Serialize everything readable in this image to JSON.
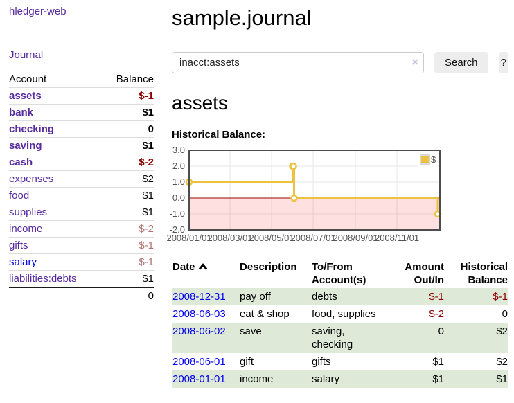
{
  "sidebar": {
    "brand": "hledger-web",
    "journal_link": "Journal",
    "accounts_table": {
      "account_header": "Account",
      "balance_header": "Balance",
      "rows": [
        {
          "account": "assets",
          "depth": 1,
          "bold": true,
          "balance": "$-1",
          "balance_style": "neg-strong"
        },
        {
          "account": "bank",
          "depth": 2,
          "bold": true,
          "balance": "$1",
          "balance_style": "normal"
        },
        {
          "account": "checking",
          "depth": 3,
          "bold": true,
          "balance": "0",
          "balance_style": "normal"
        },
        {
          "account": "saving",
          "depth": 3,
          "bold": true,
          "balance": "$1",
          "balance_style": "normal"
        },
        {
          "account": "cash",
          "depth": 2,
          "bold": true,
          "balance": "$-2",
          "balance_style": "neg-strong"
        },
        {
          "account": "expenses",
          "depth": 1,
          "bold": false,
          "balance": "$2",
          "balance_style": "normal"
        },
        {
          "account": "food",
          "depth": 2,
          "bold": false,
          "balance": "$1",
          "balance_style": "normal"
        },
        {
          "account": "supplies",
          "depth": 2,
          "bold": false,
          "balance": "$1",
          "balance_style": "normal"
        },
        {
          "account": "income",
          "depth": 1,
          "bold": false,
          "balance": "$-2",
          "balance_style": "neg-muted"
        },
        {
          "account": "gifts",
          "depth": 2,
          "bold": false,
          "balance": "$-1",
          "balance_style": "neg-muted"
        },
        {
          "account": "salary",
          "depth": 2,
          "bold": false,
          "balance": "$-1",
          "balance_style": "neg-muted",
          "link_color": "blue"
        },
        {
          "account": "liabilities:debts",
          "depth": 1,
          "bold": false,
          "balance": "$1",
          "balance_style": "normal"
        }
      ],
      "total": "0"
    }
  },
  "main": {
    "title": "sample.journal",
    "search": {
      "value": "inacct:assets",
      "clear_icon": "×",
      "search_button": "Search",
      "help_button": "?"
    },
    "account_heading": "assets",
    "chart_label": "Historical Balance:"
  },
  "chart_data": {
    "type": "line",
    "style": "step-after with circular markers",
    "title": "Historical Balance",
    "legend": [
      {
        "label": "$",
        "color": "#edc240"
      }
    ],
    "legend_position": "top-right inside plot",
    "series_color": "#edc240",
    "marker_fill": "#ffffff",
    "grid": true,
    "grid_color": "#e7e7e7",
    "border_color": "#4d4d4d",
    "tick_color": "#545454",
    "zero_line_color": "#a00000",
    "negative_region_fill": "rgba(255,0,0,0.12)",
    "ylim": [
      -2.0,
      3.0
    ],
    "yticks": [
      3.0,
      2.0,
      1.0,
      0.0,
      -1.0,
      -2.0
    ],
    "xmax_day": 368,
    "xticks": [
      {
        "day": 0,
        "label": "2008/01/01"
      },
      {
        "day": 60,
        "label": "2008/03/01"
      },
      {
        "day": 121,
        "label": "2008/05/01"
      },
      {
        "day": 182,
        "label": "2008/07/01"
      },
      {
        "day": 244,
        "label": "2008/09/01"
      },
      {
        "day": 305,
        "label": "2008/11/01"
      }
    ],
    "points": [
      {
        "date": "2008-01-01",
        "day": 0,
        "value": 1
      },
      {
        "date": "2008-06-01",
        "day": 152,
        "value": 2
      },
      {
        "date": "2008-06-02",
        "day": 153,
        "value": 2
      },
      {
        "date": "2008-06-03",
        "day": 154,
        "value": 0
      },
      {
        "date": "2008-12-31",
        "day": 365,
        "value": -1
      }
    ]
  },
  "register": {
    "headers": {
      "date": "Date",
      "description": "Description",
      "accounts": "To/From Account(s)",
      "amount": "Amount Out/In",
      "balance": "Historical Balance"
    },
    "sort": "date ascending",
    "rows": [
      {
        "date": "2008-12-31",
        "description": "pay off",
        "accounts": "debts",
        "amount": "$-1",
        "amount_negative": true,
        "balance": "$-1",
        "balance_negative": true
      },
      {
        "date": "2008-06-03",
        "description": "eat & shop",
        "accounts": "food, supplies",
        "amount": "$-2",
        "amount_negative": true,
        "balance": "0",
        "balance_negative": false
      },
      {
        "date": "2008-06-02",
        "description": "save",
        "accounts": "saving, checking",
        "amount": "0",
        "amount_negative": false,
        "balance": "$2",
        "balance_negative": false
      },
      {
        "date": "2008-06-01",
        "description": "gift",
        "accounts": "gifts",
        "amount": "$1",
        "amount_negative": false,
        "balance": "$2",
        "balance_negative": false
      },
      {
        "date": "2008-01-01",
        "description": "income",
        "accounts": "salary",
        "amount": "$1",
        "amount_negative": false,
        "balance": "$1",
        "balance_negative": false
      }
    ]
  }
}
